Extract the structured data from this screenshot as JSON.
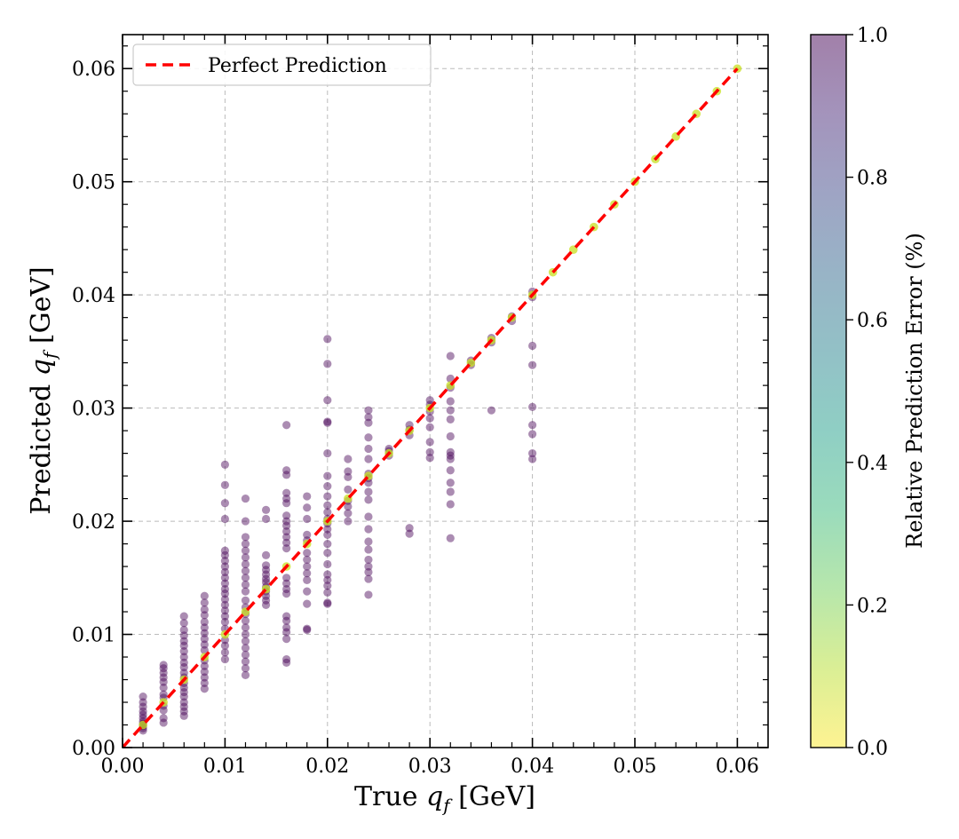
{
  "chart_data": {
    "type": "scatter",
    "xlabel": "True q_f [GeV]",
    "xlabel_prefix": "True",
    "xlabel_var": "q",
    "xlabel_sub": "f",
    "xlabel_suffix": "[GeV]",
    "ylabel": "Predicted q_f [GeV]",
    "ylabel_prefix": "Predicted",
    "ylabel_var": "q",
    "ylabel_sub": "f",
    "ylabel_suffix": "[GeV]",
    "xlim": [
      0,
      0.063
    ],
    "ylim": [
      0,
      0.063
    ],
    "xticks": [
      "0.00",
      "0.01",
      "0.02",
      "0.03",
      "0.04",
      "0.05",
      "0.06"
    ],
    "yticks": [
      "0.00",
      "0.01",
      "0.02",
      "0.03",
      "0.04",
      "0.05",
      "0.06"
    ],
    "grid": true,
    "legend": {
      "placement": "top-left",
      "label": "Perfect Prediction",
      "color": "#ff0000"
    },
    "reference_line": {
      "x": [
        0,
        0.06
      ],
      "y": [
        0,
        0.06
      ],
      "style": "dashed",
      "color": "#ff0000"
    },
    "colorbar": {
      "label": "Relative Prediction Error (%)",
      "range": [
        0,
        1.0
      ],
      "ticks": [
        "0.0",
        "0.2",
        "0.4",
        "0.6",
        "0.8",
        "1.0"
      ],
      "colormap": "viridis_r",
      "colors": [
        "#fde725",
        "#b5de2b",
        "#6ece58",
        "#35b779",
        "#1f9e89",
        "#26828e",
        "#31688e",
        "#3e4989",
        "#482878",
        "#440154"
      ]
    },
    "point_alpha": 0.45,
    "columns": [
      {
        "x": 0.002,
        "y": [
          0.0045,
          0.004,
          0.0036,
          0.0032,
          0.0029,
          0.0026,
          0.0023,
          0.0021,
          0.0019,
          0.0017,
          0.0015
        ]
      },
      {
        "x": 0.004,
        "y": [
          0.0073,
          0.007,
          0.0066,
          0.0062,
          0.0058,
          0.0053,
          0.0047,
          0.0044,
          0.0037,
          0.0033,
          0.0026,
          0.0022
        ]
      },
      {
        "x": 0.006,
        "y": [
          0.0116,
          0.011,
          0.0104,
          0.0099,
          0.0094,
          0.009,
          0.0085,
          0.008,
          0.0075,
          0.0071,
          0.0066,
          0.0062,
          0.0057,
          0.0053,
          0.0049,
          0.0045,
          0.004,
          0.0036,
          0.0032,
          0.0028
        ]
      },
      {
        "x": 0.008,
        "y": [
          0.0134,
          0.0128,
          0.0122,
          0.0117,
          0.0111,
          0.0106,
          0.0101,
          0.0096,
          0.0091,
          0.0086,
          0.0077,
          0.0072,
          0.0067,
          0.0062,
          0.0057,
          0.0052
        ]
      },
      {
        "x": 0.01,
        "y": [
          0.025,
          0.0232,
          0.0216,
          0.0202,
          0.0174,
          0.017,
          0.0165,
          0.016,
          0.0155,
          0.015,
          0.0145,
          0.014,
          0.0136,
          0.0131,
          0.0126,
          0.0121,
          0.0116,
          0.0111,
          0.0105,
          0.0095,
          0.009,
          0.0084,
          0.0078
        ]
      },
      {
        "x": 0.012,
        "y": [
          0.022,
          0.02,
          0.0186,
          0.018,
          0.0174,
          0.0168,
          0.0162,
          0.0156,
          0.015,
          0.0144,
          0.0138,
          0.013,
          0.0124,
          0.0118,
          0.0112,
          0.0106,
          0.01,
          0.0094,
          0.0088,
          0.0082,
          0.0076,
          0.007,
          0.0064
        ]
      },
      {
        "x": 0.014,
        "y": [
          0.021,
          0.0202,
          0.017,
          0.0161,
          0.0157,
          0.0153,
          0.0149,
          0.0146,
          0.0142,
          0.0138,
          0.0134,
          0.013,
          0.0126
        ]
      },
      {
        "x": 0.016,
        "y": [
          0.0285,
          0.0245,
          0.0241,
          0.0225,
          0.022,
          0.0216,
          0.0205,
          0.02,
          0.0196,
          0.0191,
          0.0186,
          0.0181,
          0.0176,
          0.015,
          0.0145,
          0.014,
          0.0136,
          0.0116,
          0.0112,
          0.0106,
          0.0102,
          0.0096,
          0.0078,
          0.0075
        ]
      },
      {
        "x": 0.018,
        "y": [
          0.0222,
          0.0212,
          0.0202,
          0.0188,
          0.0183,
          0.0172,
          0.0166,
          0.016,
          0.0154,
          0.0148,
          0.0138,
          0.0127,
          0.0105,
          0.0104
        ]
      },
      {
        "x": 0.02,
        "y": [
          0.0361,
          0.0339,
          0.0307,
          0.0288,
          0.0287,
          0.026,
          0.024,
          0.0231,
          0.0222,
          0.0214,
          0.0208,
          0.0202,
          0.0198,
          0.0193,
          0.0188,
          0.018,
          0.0172,
          0.0162,
          0.0153,
          0.0148,
          0.0143,
          0.0137,
          0.0128,
          0.0127
        ]
      },
      {
        "x": 0.022,
        "y": [
          0.0255,
          0.0244,
          0.0239,
          0.0228,
          0.0218,
          0.0213,
          0.0207,
          0.02
        ]
      },
      {
        "x": 0.024,
        "y": [
          0.0298,
          0.0292,
          0.0287,
          0.0274,
          0.0264,
          0.0255,
          0.0242,
          0.0238,
          0.0234,
          0.0226,
          0.0219,
          0.0204,
          0.0193,
          0.0182,
          0.0175,
          0.0166,
          0.016,
          0.0155,
          0.0149,
          0.0135
        ]
      },
      {
        "x": 0.026,
        "y": [
          0.0264,
          0.0262,
          0.0258
        ]
      },
      {
        "x": 0.028,
        "y": [
          0.0285,
          0.0281,
          0.0276,
          0.0194,
          0.0189
        ]
      },
      {
        "x": 0.03,
        "y": [
          0.0307,
          0.0303,
          0.0297,
          0.0291,
          0.0283,
          0.027,
          0.0261,
          0.0256
        ]
      },
      {
        "x": 0.032,
        "y": [
          0.0346,
          0.0326,
          0.0318,
          0.0306,
          0.0298,
          0.029,
          0.0275,
          0.0261,
          0.0258,
          0.0255,
          0.0245,
          0.0234,
          0.0226,
          0.0215,
          0.0185
        ]
      },
      {
        "x": 0.034,
        "y": [
          0.0342,
          0.0338
        ]
      },
      {
        "x": 0.036,
        "y": [
          0.0362,
          0.0358,
          0.0298
        ]
      },
      {
        "x": 0.038,
        "y": [
          0.0381,
          0.0377
        ]
      },
      {
        "x": 0.04,
        "y": [
          0.0403,
          0.0398,
          0.0355,
          0.0338,
          0.0301,
          0.0285,
          0.0277,
          0.026,
          0.0255
        ]
      }
    ],
    "diagonal_points": [
      0.002,
      0.004,
      0.006,
      0.008,
      0.01,
      0.012,
      0.014,
      0.016,
      0.018,
      0.02,
      0.022,
      0.024,
      0.026,
      0.028,
      0.03,
      0.032,
      0.034,
      0.036,
      0.038,
      0.04,
      0.042,
      0.044,
      0.046,
      0.048,
      0.05,
      0.052,
      0.054,
      0.056,
      0.058,
      0.06
    ]
  }
}
